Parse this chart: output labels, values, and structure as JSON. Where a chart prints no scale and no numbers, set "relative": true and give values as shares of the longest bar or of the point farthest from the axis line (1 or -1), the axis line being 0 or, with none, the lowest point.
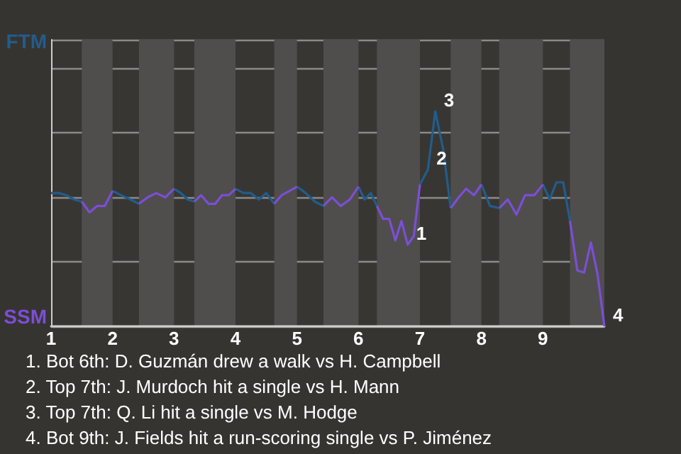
{
  "chart_data": {
    "type": "line",
    "x": [
      1,
      1.125,
      1.25,
      1.375,
      1.5,
      1.625,
      1.75,
      1.875,
      2,
      2.14,
      2.29,
      2.43,
      2.57,
      2.71,
      2.86,
      3,
      3.11,
      3.22,
      3.33,
      3.44,
      3.56,
      3.67,
      3.78,
      3.89,
      4,
      4.13,
      4.25,
      4.38,
      4.5,
      4.63,
      4.75,
      4.88,
      5,
      5.14,
      5.29,
      5.43,
      5.57,
      5.71,
      5.86,
      6,
      6.1,
      6.2,
      6.3,
      6.4,
      6.5,
      6.6,
      6.7,
      6.8,
      6.9,
      7,
      7.13,
      7.25,
      7.38,
      7.5,
      7.63,
      7.75,
      7.88,
      8,
      8.14,
      8.29,
      8.43,
      8.57,
      8.71,
      8.86,
      9,
      9.11,
      9.22,
      9.33,
      9.44,
      9.56,
      9.67,
      9.78,
      9.89,
      10
    ],
    "relative": true,
    "series": [
      {
        "color": "#215d8c",
        "values": [
          0.62,
          0.62,
          0.61,
          0.59,
          0.58,
          null,
          null,
          null,
          0.63,
          0.61,
          0.59,
          0.57,
          null,
          null,
          null,
          0.64,
          0.62,
          0.59,
          0.58,
          null,
          null,
          null,
          null,
          null,
          0.64,
          0.62,
          0.62,
          0.59,
          0.62,
          0.57,
          null,
          null,
          0.65,
          0.62,
          0.58,
          0.56,
          null,
          null,
          null,
          0.65,
          0.59,
          0.62,
          0.56,
          null,
          null,
          null,
          null,
          null,
          null,
          0.66,
          0.73,
          1,
          0.82,
          0.55,
          null,
          null,
          null,
          0.66,
          0.56,
          0.55,
          null,
          null,
          null,
          null,
          0.66,
          0.59,
          0.67,
          0.67,
          0.49,
          null,
          null,
          null,
          null,
          null
        ]
      },
      {
        "color": "#7c4ed6",
        "values": [
          null,
          null,
          null,
          null,
          0.58,
          0.53,
          0.56,
          0.56,
          0.63,
          null,
          null,
          0.57,
          0.6,
          0.62,
          0.6,
          0.64,
          null,
          null,
          0.58,
          0.61,
          0.57,
          0.57,
          0.61,
          0.61,
          0.64,
          null,
          null,
          null,
          null,
          0.57,
          0.61,
          0.63,
          0.65,
          null,
          null,
          0.56,
          0.6,
          0.56,
          0.59,
          0.65,
          null,
          null,
          0.56,
          0.5,
          0.5,
          0.4,
          0.49,
          0.38,
          0.42,
          0.66,
          null,
          null,
          null,
          0.55,
          0.6,
          0.64,
          0.61,
          0.66,
          null,
          0.55,
          0.59,
          0.52,
          0.61,
          0.61,
          0.66,
          null,
          null,
          null,
          0.49,
          0.26,
          0.25,
          0.39,
          0.24,
          0
        ]
      }
    ],
    "xlim": [
      1,
      10
    ],
    "xticks": [
      1,
      2,
      3,
      4,
      5,
      6,
      7,
      8,
      9
    ],
    "grid": "y",
    "bands": [
      {
        "axis": "x",
        "from": 1.5,
        "to": 2,
        "color": "#4f4e4d"
      },
      {
        "axis": "x",
        "from": 2.43,
        "to": 3,
        "color": "#4f4e4d"
      },
      {
        "axis": "x",
        "from": 3.33,
        "to": 4,
        "color": "#4f4e4d"
      },
      {
        "axis": "x",
        "from": 4.63,
        "to": 5,
        "color": "#4f4e4d"
      },
      {
        "axis": "x",
        "from": 5.43,
        "to": 6,
        "color": "#4f4e4d"
      },
      {
        "axis": "x",
        "from": 6.3,
        "to": 7,
        "color": "#4f4e4d"
      },
      {
        "axis": "x",
        "from": 7.5,
        "to": 8,
        "color": "#4f4e4d"
      },
      {
        "axis": "x",
        "from": 8.29,
        "to": 9,
        "color": "#4f4e4d"
      },
      {
        "axis": "x",
        "from": 9.44,
        "to": 10,
        "color": "#4f4e4d"
      }
    ],
    "annotations": [
      "FTM",
      "SSM",
      {
        "text": "1",
        "x": 6.8,
        "y": 0.38
      },
      {
        "text": "2",
        "x": 7.13,
        "y": 0.73
      },
      {
        "text": "3",
        "x": 7.25,
        "y": 1
      },
      {
        "text": "4",
        "x": 10,
        "y": 0
      },
      "1. Bot 6th: D. Guzmán drew a walk vs H. Campbell",
      "2. Top 7th: J. Murdoch hit a single vs H. Mann",
      "3. Top 7th: Q. Li hit a single vs M. Hodge",
      "4. Bot 9th: J. Fields hit a run-scoring single vs P. Jiménez"
    ]
  }
}
